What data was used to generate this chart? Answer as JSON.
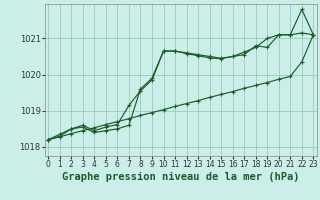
{
  "xlabel": "Graphe pression niveau de la mer (hPa)",
  "bg_color": "#cceee8",
  "grid_color": "#99ccbb",
  "line_color": "#1a5c2a",
  "hours": [
    0,
    1,
    2,
    3,
    4,
    5,
    6,
    7,
    8,
    9,
    10,
    11,
    12,
    13,
    14,
    15,
    16,
    17,
    18,
    19,
    20,
    21,
    22,
    23
  ],
  "line1": [
    1018.2,
    1018.3,
    1018.5,
    1018.55,
    1018.4,
    1018.45,
    1018.5,
    1018.6,
    1019.6,
    1019.9,
    1020.65,
    1020.65,
    1020.6,
    1020.55,
    1020.5,
    1020.45,
    1020.5,
    1020.55,
    1020.8,
    1020.75,
    1021.1,
    1021.1,
    1021.8,
    1021.1
  ],
  "line2": [
    1018.2,
    1018.28,
    1018.37,
    1018.45,
    1018.53,
    1018.62,
    1018.7,
    1018.78,
    1018.87,
    1018.95,
    1019.03,
    1019.12,
    1019.2,
    1019.28,
    1019.37,
    1019.45,
    1019.53,
    1019.62,
    1019.7,
    1019.78,
    1019.87,
    1019.95,
    1020.35,
    1021.1
  ],
  "line3": [
    1018.2,
    1018.35,
    1018.5,
    1018.6,
    1018.45,
    1018.55,
    1018.62,
    1019.15,
    1019.55,
    1019.85,
    1020.65,
    1020.65,
    1020.58,
    1020.52,
    1020.46,
    1020.44,
    1020.5,
    1020.62,
    1020.75,
    1021.0,
    1021.1,
    1021.1,
    1021.15,
    1021.1
  ],
  "ylim": [
    1017.75,
    1021.95
  ],
  "yticks": [
    1018,
    1019,
    1020,
    1021
  ],
  "xticks": [
    0,
    1,
    2,
    3,
    4,
    5,
    6,
    7,
    8,
    9,
    10,
    11,
    12,
    13,
    14,
    15,
    16,
    17,
    18,
    19,
    20,
    21,
    22,
    23
  ],
  "xlabel_fontsize": 7.5,
  "tick_fontsize": 6.0
}
